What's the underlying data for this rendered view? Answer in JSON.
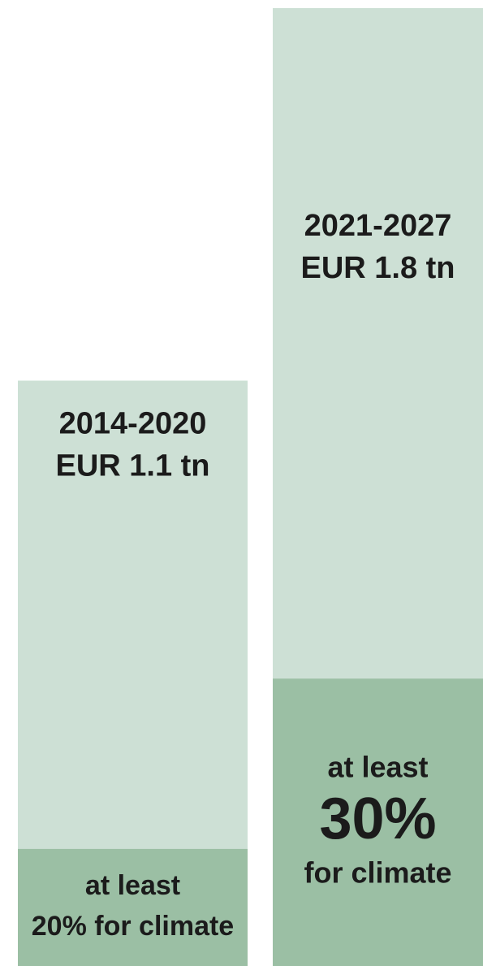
{
  "chart_data": {
    "type": "bar",
    "categories": [
      "2014-2020",
      "2021-2027"
    ],
    "values": [
      1.1,
      1.8
    ],
    "value_labels": [
      "EUR 1.1 tn",
      "EUR 1.8 tn"
    ],
    "color": "#cde0d5",
    "climate": {
      "values": [
        20,
        30
      ],
      "labels": [
        [
          "at least",
          "20% for climate"
        ],
        [
          "at least",
          "30%",
          "for climate"
        ]
      ],
      "color": "#9bbfa4"
    }
  }
}
